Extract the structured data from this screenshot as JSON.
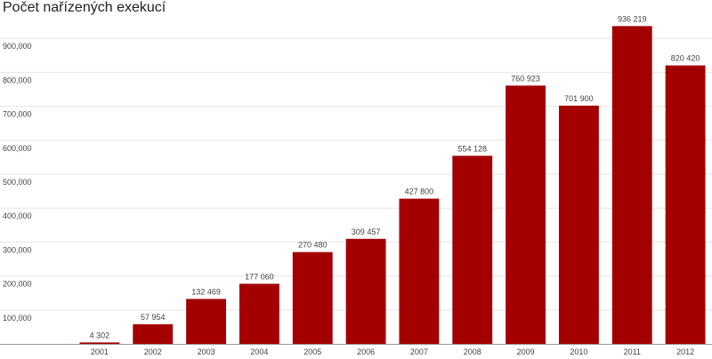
{
  "chart_data": {
    "type": "bar",
    "title": "Počet nařízených exekucí",
    "xlabel": "",
    "ylabel": "",
    "categories": [
      "2001",
      "2002",
      "2003",
      "2004",
      "2005",
      "2006",
      "2007",
      "2008",
      "2009",
      "2010",
      "2011",
      "2012"
    ],
    "values": [
      4302,
      57954,
      132469,
      177060,
      270480,
      309457,
      427800,
      554128,
      760923,
      701900,
      936219,
      820420
    ],
    "value_labels": [
      "4 302",
      "57 954",
      "132 469",
      "177 060",
      "270 480",
      "309 457",
      "427 800",
      "554 128",
      "760 923",
      "701 900",
      "936 219",
      "820 420"
    ],
    "ylim": [
      0,
      1000000
    ],
    "yticks": [
      100000,
      200000,
      300000,
      400000,
      500000,
      600000,
      700000,
      800000,
      900000
    ],
    "ytick_labels": [
      "100,000",
      "200,000",
      "300,000",
      "400,000",
      "500,000",
      "600,000",
      "700,000",
      "800,000",
      "900,000"
    ],
    "grid": true,
    "legend": "none",
    "colors": {
      "bar": "#a30000",
      "grid": "#e6e6e6",
      "axis": "#999999"
    }
  }
}
